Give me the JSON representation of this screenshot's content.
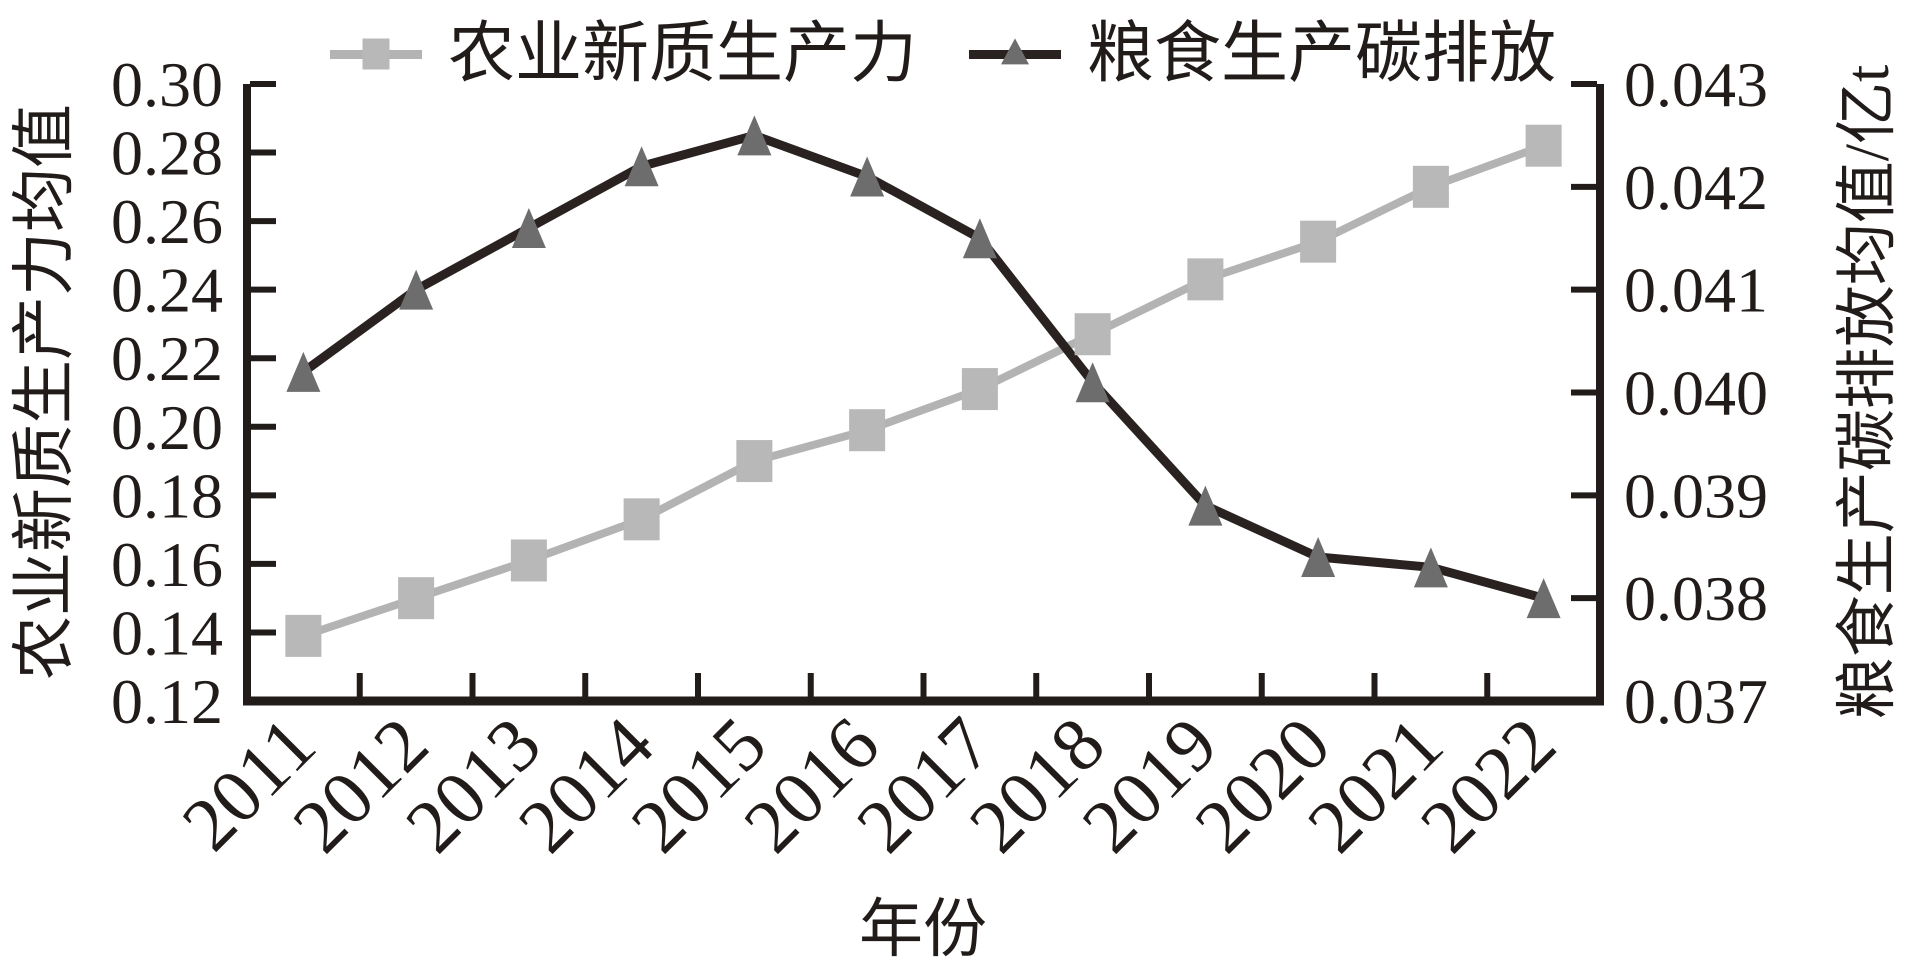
{
  "chart_data": {
    "type": "line",
    "categories": [
      "2011",
      "2012",
      "2013",
      "2014",
      "2015",
      "2016",
      "2017",
      "2018",
      "2019",
      "2020",
      "2021",
      "2022"
    ],
    "series": [
      {
        "name": "农业新质生产力",
        "axis": "left",
        "marker": "square",
        "line_color": "#b3b3b3",
        "marker_color": "#b8b8b8",
        "values": [
          0.139,
          0.15,
          0.161,
          0.173,
          0.19,
          0.199,
          0.211,
          0.227,
          0.243,
          0.254,
          0.27,
          0.282
        ]
      },
      {
        "name": "粮食生产碳排放",
        "axis": "right",
        "marker": "triangle",
        "line_color": "#2a2220",
        "marker_color": "#6d6d6d",
        "values": [
          0.0402,
          0.041,
          0.0416,
          0.0422,
          0.0425,
          0.0421,
          0.0415,
          0.0401,
          0.0389,
          0.0384,
          0.0383,
          0.038
        ]
      }
    ],
    "title": "",
    "xlabel": "年份",
    "ylabel_left": "农业新质生产力均值",
    "ylabel_right": "粮食生产碳排放均值/亿t",
    "ylim_left": [
      0.12,
      0.3
    ],
    "ytick_labels_left": [
      "0.30",
      "0.28",
      "0.26",
      "0.24",
      "0.22",
      "0.20",
      "0.18",
      "0.16",
      "0.14",
      "0.12"
    ],
    "ylim_right": [
      0.037,
      0.043
    ],
    "ytick_labels_right": [
      "0.043",
      "0.042",
      "0.041",
      "0.040",
      "0.039",
      "0.038",
      "0.037"
    ],
    "grid": false,
    "legend_position": "top-center",
    "axis_color": "#211c19"
  }
}
